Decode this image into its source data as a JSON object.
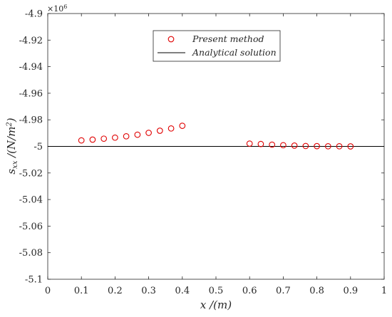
{
  "chart_data": {
    "type": "scatter",
    "xlabel": "x /(m)",
    "ylabel": "s_xx /(N/m^2)",
    "y_exponent_label": "×10^6",
    "xlim": [
      0,
      1
    ],
    "ylim": [
      -5.1,
      -4.9
    ],
    "x_ticks": [
      0,
      0.1,
      0.2,
      0.3,
      0.4,
      0.5,
      0.6,
      0.7,
      0.8,
      0.9,
      1
    ],
    "x_tick_labels": [
      "0",
      "0.1",
      "0.2",
      "0.3",
      "0.4",
      "0.5",
      "0.6",
      "0.7",
      "0.8",
      "0.9",
      "1"
    ],
    "y_ticks": [
      -4.9,
      -4.92,
      -4.94,
      -4.96,
      -4.98,
      -5,
      -5.02,
      -5.04,
      -5.06,
      -5.08,
      -5.1
    ],
    "y_tick_labels": [
      "-4.9",
      "-4.92",
      "-4.94",
      "-4.96",
      "-4.98",
      "-5",
      "-5.02",
      "-5.04",
      "-5.06",
      "-5.08",
      "-5.1"
    ],
    "grid": false,
    "legend_position": "top-center",
    "series": [
      {
        "name": "Present method",
        "kind": "markers",
        "marker": "circle",
        "color": "#e00000",
        "x": [
          0.1,
          0.1333,
          0.1667,
          0.2,
          0.2333,
          0.2667,
          0.3,
          0.3333,
          0.3667,
          0.4,
          0.6,
          0.6333,
          0.6667,
          0.7,
          0.7333,
          0.7667,
          0.8,
          0.8333,
          0.8667,
          0.9
        ],
        "y": [
          -4.9955,
          -4.9949,
          -4.9942,
          -4.9934,
          -4.9924,
          -4.9912,
          -4.9898,
          -4.9882,
          -4.9865,
          -4.9845,
          -4.9979,
          -4.9982,
          -4.9987,
          -4.9991,
          -4.9994,
          -4.9997,
          -4.9998,
          -4.9999,
          -4.9999,
          -5.0
        ]
      },
      {
        "name": "Analytical solution",
        "kind": "line",
        "color": "#000000",
        "x": [
          0,
          1
        ],
        "y": [
          -5.0,
          -5.0
        ]
      }
    ]
  }
}
